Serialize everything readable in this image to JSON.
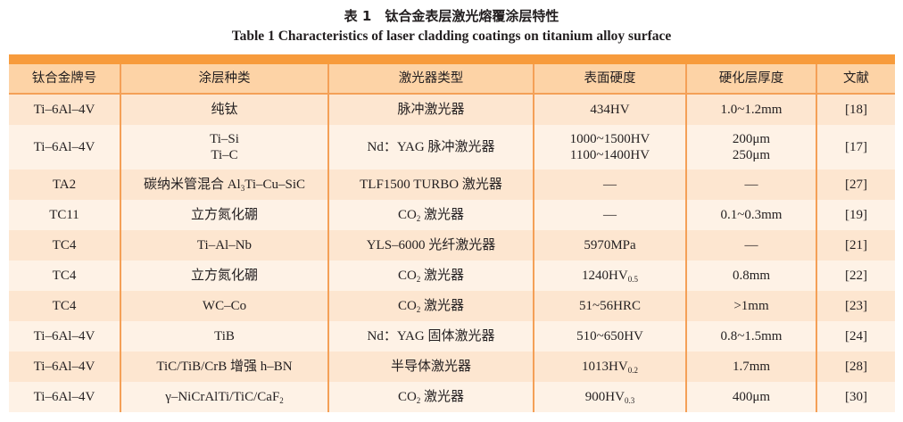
{
  "title_cn": "表 1　钛合金表层激光熔覆涂层特性",
  "title_en": "Table 1    Characteristics of laser cladding coatings on titanium alloy surface",
  "colors": {
    "band": "#f79b3c",
    "header": "#fdd3a6",
    "row_odd": "#fde6d0",
    "row_even": "#fef2e6",
    "rule": "#f4a057"
  },
  "headers": [
    "钛合金牌号",
    "涂层种类",
    "激光器类型",
    "表面硬度",
    "硬化层厚度",
    "文献"
  ],
  "rows": [
    [
      [
        [
          {
            "t": "Ti–6Al–4V"
          }
        ]
      ],
      [
        [
          {
            "t": "纯钛"
          }
        ]
      ],
      [
        [
          {
            "t": "脉冲激光器"
          }
        ]
      ],
      [
        [
          {
            "t": "434HV"
          }
        ]
      ],
      [
        [
          {
            "t": "1.0~1.2mm"
          }
        ]
      ],
      [
        [
          {
            "t": "[18]"
          }
        ]
      ]
    ],
    [
      [
        [
          {
            "t": "Ti–6Al–4V"
          }
        ]
      ],
      [
        [
          {
            "t": "Ti–Si"
          }
        ],
        [
          {
            "t": "Ti–C"
          }
        ]
      ],
      [
        [
          {
            "t": "Nd：YAG 脉冲激光器"
          }
        ]
      ],
      [
        [
          {
            "t": "1000~1500HV"
          }
        ],
        [
          {
            "t": "1100~1400HV"
          }
        ]
      ],
      [
        [
          {
            "t": "200μm"
          }
        ],
        [
          {
            "t": "250μm"
          }
        ]
      ],
      [
        [
          {
            "t": "[17]"
          }
        ]
      ]
    ],
    [
      [
        [
          {
            "t": "TA2"
          }
        ]
      ],
      [
        [
          {
            "t": "碳纳米管混合 Al",
            "s": "3"
          },
          {
            "t": "Ti–Cu–SiC"
          }
        ]
      ],
      [
        [
          {
            "t": "TLF1500 TURBO 激光器"
          }
        ]
      ],
      [
        [
          {
            "t": "—"
          }
        ]
      ],
      [
        [
          {
            "t": "—"
          }
        ]
      ],
      [
        [
          {
            "t": "[27]"
          }
        ]
      ]
    ],
    [
      [
        [
          {
            "t": "TC11"
          }
        ]
      ],
      [
        [
          {
            "t": "立方氮化硼"
          }
        ]
      ],
      [
        [
          {
            "t": "CO",
            "s": "2"
          },
          {
            "t": " 激光器"
          }
        ]
      ],
      [
        [
          {
            "t": "—"
          }
        ]
      ],
      [
        [
          {
            "t": "0.1~0.3mm"
          }
        ]
      ],
      [
        [
          {
            "t": "[19]"
          }
        ]
      ]
    ],
    [
      [
        [
          {
            "t": "TC4"
          }
        ]
      ],
      [
        [
          {
            "t": "Ti–Al–Nb"
          }
        ]
      ],
      [
        [
          {
            "t": "YLS–6000 光纤激光器"
          }
        ]
      ],
      [
        [
          {
            "t": "5970MPa"
          }
        ]
      ],
      [
        [
          {
            "t": "—"
          }
        ]
      ],
      [
        [
          {
            "t": "[21]"
          }
        ]
      ]
    ],
    [
      [
        [
          {
            "t": "TC4"
          }
        ]
      ],
      [
        [
          {
            "t": "立方氮化硼"
          }
        ]
      ],
      [
        [
          {
            "t": "CO",
            "s": "2"
          },
          {
            "t": " 激光器"
          }
        ]
      ],
      [
        [
          {
            "t": "1240HV",
            "s": "0.5"
          }
        ]
      ],
      [
        [
          {
            "t": "0.8mm"
          }
        ]
      ],
      [
        [
          {
            "t": "[22]"
          }
        ]
      ]
    ],
    [
      [
        [
          {
            "t": "TC4"
          }
        ]
      ],
      [
        [
          {
            "t": "WC–Co"
          }
        ]
      ],
      [
        [
          {
            "t": "CO",
            "s": "2"
          },
          {
            "t": " 激光器"
          }
        ]
      ],
      [
        [
          {
            "t": "51~56HRC"
          }
        ]
      ],
      [
        [
          {
            "t": ">1mm"
          }
        ]
      ],
      [
        [
          {
            "t": "[23]"
          }
        ]
      ]
    ],
    [
      [
        [
          {
            "t": "Ti–6Al–4V"
          }
        ]
      ],
      [
        [
          {
            "t": "TiB"
          }
        ]
      ],
      [
        [
          {
            "t": "Nd：YAG 固体激光器"
          }
        ]
      ],
      [
        [
          {
            "t": "510~650HV"
          }
        ]
      ],
      [
        [
          {
            "t": "0.8~1.5mm"
          }
        ]
      ],
      [
        [
          {
            "t": "[24]"
          }
        ]
      ]
    ],
    [
      [
        [
          {
            "t": "Ti–6Al–4V"
          }
        ]
      ],
      [
        [
          {
            "t": "TiC/TiB/CrB 增强 h–BN"
          }
        ]
      ],
      [
        [
          {
            "t": "半导体激光器"
          }
        ]
      ],
      [
        [
          {
            "t": "1013HV",
            "s": "0.2"
          }
        ]
      ],
      [
        [
          {
            "t": "1.7mm"
          }
        ]
      ],
      [
        [
          {
            "t": "[28]"
          }
        ]
      ]
    ],
    [
      [
        [
          {
            "t": "Ti–6Al–4V"
          }
        ]
      ],
      [
        [
          {
            "t": "γ–NiCrAlTi/TiC/CaF",
            "s": "2"
          }
        ]
      ],
      [
        [
          {
            "t": "CO",
            "s": "2"
          },
          {
            "t": " 激光器"
          }
        ]
      ],
      [
        [
          {
            "t": "900HV",
            "s": "0.3"
          }
        ]
      ],
      [
        [
          {
            "t": "400μm"
          }
        ]
      ],
      [
        [
          {
            "t": "[30]"
          }
        ]
      ]
    ]
  ]
}
